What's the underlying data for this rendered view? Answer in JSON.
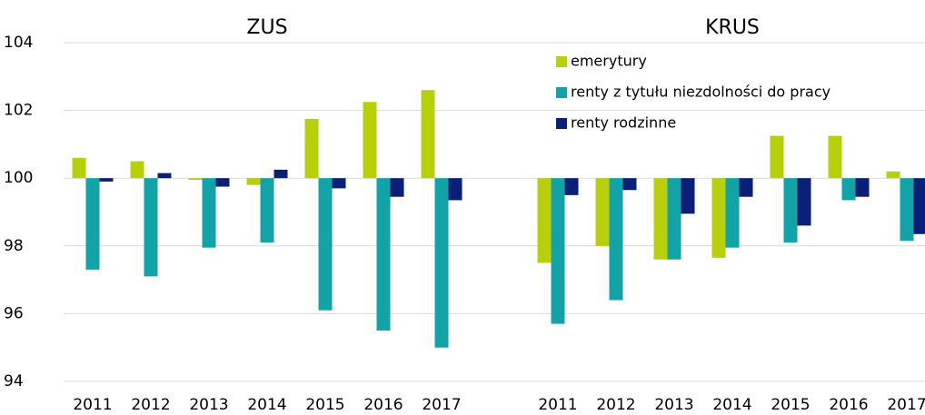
{
  "chart_data": {
    "type": "bar",
    "panel_titles": [
      "ZUS",
      "KRUS"
    ],
    "categories": [
      "2011",
      "2012",
      "2013",
      "2014",
      "2015",
      "2016",
      "2017",
      null,
      "2011",
      "2012",
      "2013",
      "2014",
      "2015",
      "2016",
      "2017"
    ],
    "series": [
      {
        "name": "emerytury",
        "color": "#b8cf0c",
        "values": [
          100.6,
          100.5,
          99.95,
          99.8,
          101.75,
          102.25,
          102.6,
          null,
          97.5,
          98.0,
          97.6,
          97.65,
          101.25,
          101.25,
          100.2
        ]
      },
      {
        "name": "renty z tytułu niezdolności do pracy",
        "color": "#12a3a8",
        "values": [
          97.3,
          97.1,
          97.95,
          98.1,
          96.1,
          95.5,
          95.0,
          null,
          95.7,
          96.4,
          97.6,
          97.95,
          98.1,
          99.35,
          98.15
        ]
      },
      {
        "name": "renty rodzinne",
        "color": "#0b1f78",
        "values": [
          99.9,
          100.15,
          99.75,
          100.25,
          99.7,
          99.45,
          99.35,
          null,
          99.5,
          99.65,
          98.95,
          99.45,
          98.6,
          99.45,
          98.35
        ]
      }
    ],
    "bar_base": 100,
    "ylim": [
      94,
      104
    ],
    "yticks": [
      94,
      96,
      98,
      100,
      102,
      104
    ],
    "grid": true,
    "legend": "top-right"
  }
}
